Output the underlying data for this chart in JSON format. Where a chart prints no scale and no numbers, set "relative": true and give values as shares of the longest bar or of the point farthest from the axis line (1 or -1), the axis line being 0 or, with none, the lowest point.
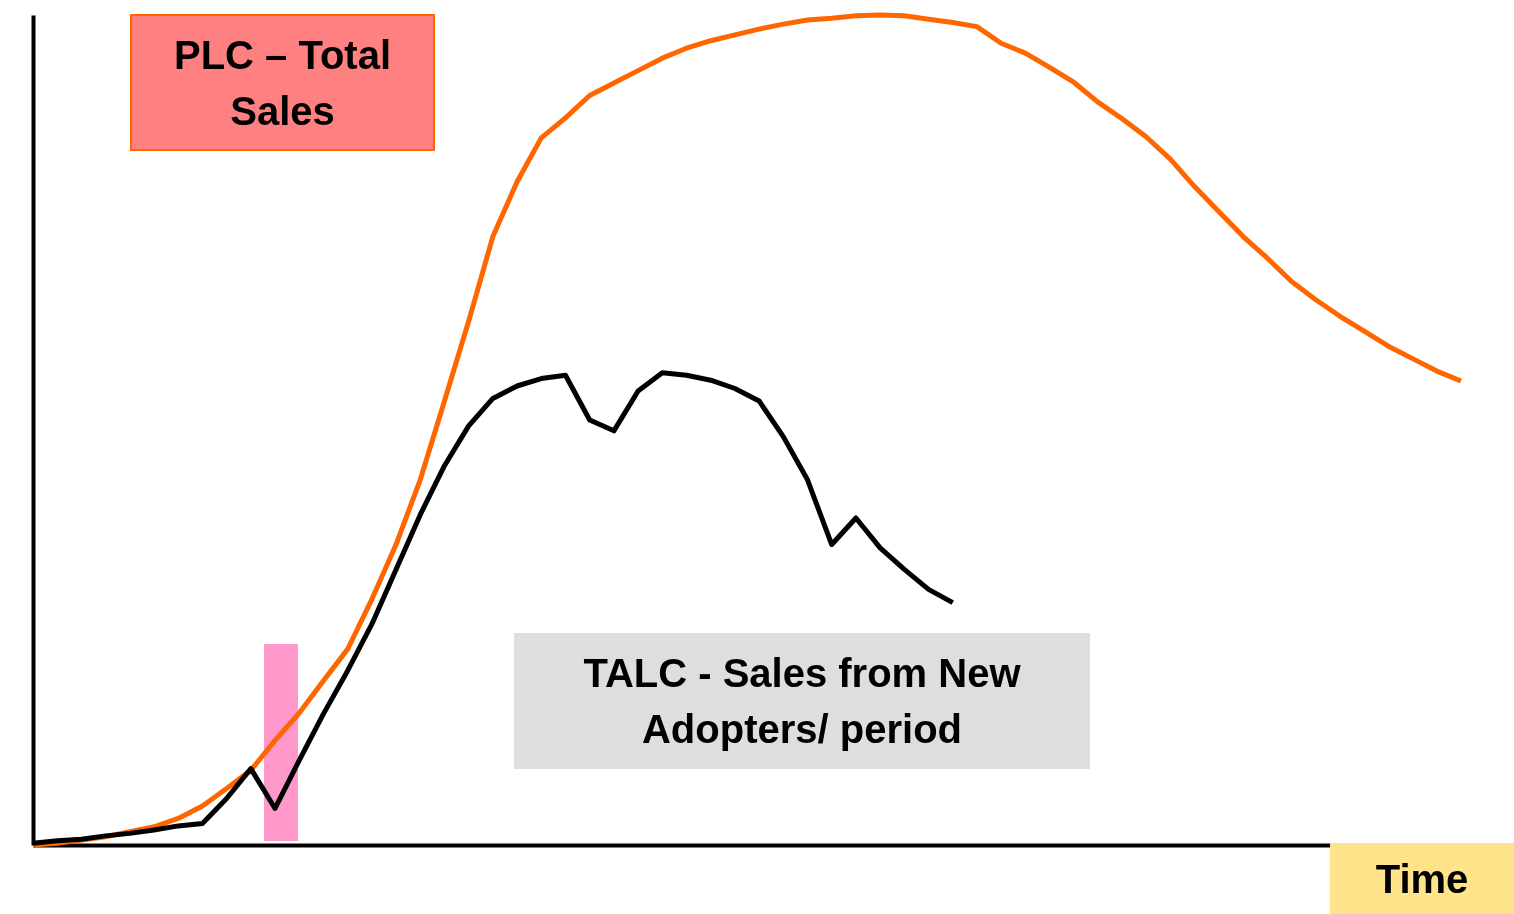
{
  "chart_data": {
    "type": "line",
    "xlabel": "Time",
    "relative": true,
    "legend": false,
    "grid": false,
    "categories": [
      null,
      null,
      null,
      null,
      null,
      null,
      null,
      null,
      null,
      null,
      null,
      null,
      null,
      null,
      null,
      null,
      null,
      null,
      null,
      null,
      null,
      null,
      null,
      null,
      null,
      null,
      null,
      null,
      null,
      null,
      null,
      null,
      null,
      null,
      null,
      null,
      null,
      null,
      null,
      null,
      null,
      null,
      null,
      null,
      null,
      null,
      null,
      null,
      null,
      null,
      null,
      null,
      null,
      null,
      null,
      null,
      null,
      null,
      null,
      null
    ],
    "series": [
      {
        "name": "PLC – Total Sales",
        "color": "#ff6600",
        "values": [
          0,
          0.002,
          0.006,
          0.01,
          0.016,
          0.022,
          0.032,
          0.047,
          0.068,
          0.09,
          0.126,
          0.159,
          0.198,
          0.236,
          0.296,
          0.362,
          0.44,
          0.535,
          0.631,
          0.733,
          0.799,
          0.852,
          0.876,
          0.903,
          0.918,
          0.933,
          0.948,
          0.96,
          0.969,
          0.976,
          0.983,
          0.989,
          0.994,
          0.996,
          0.999,
          1,
          0.999,
          0.995,
          0.991,
          0.986,
          0.966,
          0.954,
          0.937,
          0.919,
          0.895,
          0.875,
          0.853,
          0.826,
          0.793,
          0.763,
          0.733,
          0.707,
          0.679,
          0.657,
          0.637,
          0.619,
          0.601,
          0.586,
          0.571,
          0.559
        ]
      },
      {
        "name": "TALC - Sales from New Adopters/ period",
        "color": "#000000",
        "values": [
          0.002,
          0.005,
          0.007,
          0.011,
          0.014,
          0.018,
          0.023,
          0.026,
          0.056,
          0.092,
          0.044,
          0.102,
          0.158,
          0.21,
          0.266,
          0.332,
          0.398,
          0.457,
          0.505,
          0.538,
          0.553,
          0.562,
          0.566,
          0.512,
          0.499,
          0.547,
          0.569,
          0.566,
          0.56,
          0.55,
          0.535,
          0.492,
          0.44,
          0.362,
          0.394,
          0.358,
          0.332,
          0.308,
          0.292,
          null,
          null,
          null,
          null,
          null,
          null,
          null,
          null,
          null,
          null,
          null,
          null,
          null,
          null,
          null,
          null,
          null,
          null,
          null,
          null,
          null
        ]
      }
    ]
  }
}
